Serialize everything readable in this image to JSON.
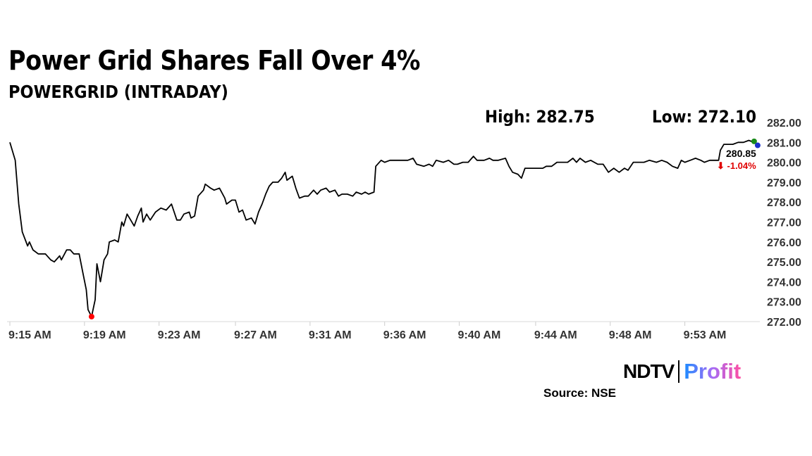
{
  "title": "Power Grid Shares Fall Over 4%",
  "subtitle": "POWERGRID (INTRADAY)",
  "high_label": "High: 282.75",
  "low_label": "Low: 272.10",
  "last_price": "280.85",
  "change": "⬇ -1.04%",
  "logo": {
    "ndtv": "NDTV",
    "profit": "Profit"
  },
  "source": "Source: NSE",
  "colors": {
    "line": "#000000",
    "low_marker": "#ff0000",
    "high_marker": "#1a8a1a",
    "last_marker": "#1a2fcc",
    "change": "#e00000",
    "axis_text": "#333333"
  },
  "chart_data": {
    "type": "line",
    "title": "POWERGRID (INTRADAY)",
    "xlabel": "",
    "ylabel": "",
    "x_unit": "minutes after 9:15 AM",
    "xlim": [
      0,
      42.1
    ],
    "ylim": [
      272,
      282
    ],
    "y_ticks": [
      "272.00",
      "273.00",
      "274.00",
      "275.00",
      "276.00",
      "277.00",
      "278.00",
      "279.00",
      "280.00",
      "281.00",
      "282.00"
    ],
    "x_ticks": [
      {
        "at": 0,
        "label": "9:15 AM"
      },
      {
        "at": 4.2,
        "label": "9:19 AM"
      },
      {
        "at": 8.4,
        "label": "9:23 AM"
      },
      {
        "at": 12.7,
        "label": "9:27 AM"
      },
      {
        "at": 16.9,
        "label": "9:31 AM"
      },
      {
        "at": 21.1,
        "label": "9:36 AM"
      },
      {
        "at": 25.3,
        "label": "9:40 AM"
      },
      {
        "at": 29.6,
        "label": "9:44 AM"
      },
      {
        "at": 33.8,
        "label": "9:48 AM"
      },
      {
        "at": 38.0,
        "label": "9:53 AM"
      }
    ],
    "series": [
      {
        "name": "POWERGRID",
        "points": [
          [
            0,
            281.0
          ],
          [
            0.3,
            280.1
          ],
          [
            0.5,
            277.9
          ],
          [
            0.7,
            276.5
          ],
          [
            1.0,
            275.8
          ],
          [
            1.1,
            276.0
          ],
          [
            1.3,
            275.6
          ],
          [
            1.6,
            275.4
          ],
          [
            2.0,
            275.4
          ],
          [
            2.3,
            275.1
          ],
          [
            2.5,
            275.0
          ],
          [
            2.8,
            275.3
          ],
          [
            2.9,
            275.1
          ],
          [
            3.2,
            275.6
          ],
          [
            3.4,
            275.6
          ],
          [
            3.6,
            275.4
          ],
          [
            3.9,
            275.4
          ],
          [
            4.1,
            274.5
          ],
          [
            4.3,
            273.6
          ],
          [
            4.4,
            272.6
          ],
          [
            4.6,
            272.25
          ],
          [
            4.8,
            273.1
          ],
          [
            4.9,
            274.9
          ],
          [
            5.1,
            274.0
          ],
          [
            5.3,
            275.1
          ],
          [
            5.5,
            275.4
          ],
          [
            5.6,
            276.0
          ],
          [
            5.9,
            276.1
          ],
          [
            6.1,
            276.0
          ],
          [
            6.3,
            277.0
          ],
          [
            6.4,
            276.8
          ],
          [
            6.6,
            277.4
          ],
          [
            6.8,
            277.1
          ],
          [
            7.0,
            276.8
          ],
          [
            7.2,
            277.3
          ],
          [
            7.4,
            277.7
          ],
          [
            7.5,
            277.0
          ],
          [
            7.7,
            277.4
          ],
          [
            7.9,
            277.1
          ],
          [
            8.2,
            277.5
          ],
          [
            8.5,
            277.7
          ],
          [
            8.8,
            277.6
          ],
          [
            9.1,
            277.9
          ],
          [
            9.4,
            277.1
          ],
          [
            9.6,
            277.1
          ],
          [
            9.8,
            277.4
          ],
          [
            10.1,
            277.5
          ],
          [
            10.2,
            277.2
          ],
          [
            10.4,
            277.3
          ],
          [
            10.6,
            278.3
          ],
          [
            10.9,
            278.6
          ],
          [
            11.0,
            278.9
          ],
          [
            11.3,
            278.7
          ],
          [
            11.5,
            278.6
          ],
          [
            11.8,
            278.7
          ],
          [
            12.1,
            278.2
          ],
          [
            12.2,
            277.9
          ],
          [
            12.5,
            278.1
          ],
          [
            12.7,
            278.1
          ],
          [
            12.9,
            277.5
          ],
          [
            13.1,
            277.6
          ],
          [
            13.3,
            277.1
          ],
          [
            13.6,
            277.2
          ],
          [
            13.8,
            276.9
          ],
          [
            14.0,
            277.5
          ],
          [
            14.2,
            277.9
          ],
          [
            14.4,
            278.4
          ],
          [
            14.6,
            278.8
          ],
          [
            14.8,
            279.0
          ],
          [
            15.1,
            279.0
          ],
          [
            15.3,
            279.2
          ],
          [
            15.5,
            279.5
          ],
          [
            15.6,
            279.1
          ],
          [
            15.9,
            279.3
          ],
          [
            16.1,
            278.7
          ],
          [
            16.3,
            278.2
          ],
          [
            16.6,
            278.3
          ],
          [
            16.8,
            278.3
          ],
          [
            17.1,
            278.6
          ],
          [
            17.3,
            278.4
          ],
          [
            17.5,
            278.6
          ],
          [
            17.8,
            278.7
          ],
          [
            18.0,
            278.5
          ],
          [
            18.3,
            278.6
          ],
          [
            18.5,
            278.3
          ],
          [
            18.7,
            278.4
          ],
          [
            19.0,
            278.4
          ],
          [
            19.3,
            278.3
          ],
          [
            19.5,
            278.5
          ],
          [
            19.8,
            278.4
          ],
          [
            20.0,
            278.5
          ],
          [
            20.2,
            278.4
          ],
          [
            20.5,
            278.5
          ],
          [
            20.6,
            279.8
          ],
          [
            20.9,
            280.1
          ],
          [
            21.1,
            280.0
          ],
          [
            21.4,
            280.1
          ],
          [
            21.7,
            280.1
          ],
          [
            22.1,
            280.1
          ],
          [
            22.4,
            280.1
          ],
          [
            22.7,
            280.2
          ],
          [
            22.9,
            279.9
          ],
          [
            23.3,
            279.8
          ],
          [
            23.6,
            279.9
          ],
          [
            23.8,
            279.8
          ],
          [
            24.0,
            280.1
          ],
          [
            24.4,
            280.0
          ],
          [
            24.7,
            280.1
          ],
          [
            25.0,
            279.9
          ],
          [
            25.2,
            279.9
          ],
          [
            25.5,
            280.0
          ],
          [
            25.8,
            280.0
          ],
          [
            26.1,
            280.3
          ],
          [
            26.3,
            280.1
          ],
          [
            26.7,
            280.1
          ],
          [
            27.0,
            280.2
          ],
          [
            27.2,
            280.1
          ],
          [
            27.5,
            280.1
          ],
          [
            27.9,
            280.2
          ],
          [
            28.1,
            279.8
          ],
          [
            28.3,
            279.5
          ],
          [
            28.6,
            279.4
          ],
          [
            28.8,
            279.2
          ],
          [
            29.0,
            279.7
          ],
          [
            29.3,
            279.7
          ],
          [
            29.5,
            279.7
          ],
          [
            29.8,
            279.7
          ],
          [
            30.0,
            279.7
          ],
          [
            30.2,
            279.8
          ],
          [
            30.5,
            279.8
          ],
          [
            30.8,
            280.0
          ],
          [
            31.1,
            280.0
          ],
          [
            31.4,
            280.0
          ],
          [
            31.7,
            280.2
          ],
          [
            31.9,
            280.0
          ],
          [
            32.1,
            280.2
          ],
          [
            32.4,
            280.0
          ],
          [
            32.7,
            280.1
          ],
          [
            33.1,
            279.9
          ],
          [
            33.4,
            279.9
          ],
          [
            33.7,
            279.5
          ],
          [
            34.0,
            279.7
          ],
          [
            34.3,
            279.5
          ],
          [
            34.6,
            279.7
          ],
          [
            34.8,
            279.6
          ],
          [
            35.1,
            280.0
          ],
          [
            35.4,
            280.0
          ],
          [
            35.7,
            280.0
          ],
          [
            36.0,
            280.1
          ],
          [
            36.4,
            280.0
          ],
          [
            36.7,
            280.1
          ],
          [
            37.0,
            280.0
          ],
          [
            37.3,
            279.8
          ],
          [
            37.6,
            279.7
          ],
          [
            37.8,
            280.1
          ],
          [
            38.0,
            280.0
          ],
          [
            38.3,
            280.1
          ],
          [
            38.6,
            280.2
          ],
          [
            38.9,
            280.1
          ],
          [
            39.1,
            280.0
          ],
          [
            39.4,
            280.1
          ],
          [
            39.7,
            280.1
          ],
          [
            39.9,
            280.1
          ],
          [
            40.0,
            280.6
          ],
          [
            40.2,
            280.9
          ],
          [
            40.5,
            280.9
          ],
          [
            40.7,
            280.9
          ],
          [
            41.0,
            281.0
          ],
          [
            41.3,
            281.0
          ],
          [
            41.6,
            281.1
          ],
          [
            41.9,
            281.0
          ],
          [
            42.1,
            280.85
          ]
        ]
      }
    ],
    "markers": [
      {
        "name": "low",
        "at": 4.6,
        "value": 272.25
      },
      {
        "name": "high",
        "at": 41.9,
        "value": 281.05
      },
      {
        "name": "last",
        "at": 42.1,
        "value": 280.85
      }
    ],
    "grid": false,
    "legend": "none"
  }
}
